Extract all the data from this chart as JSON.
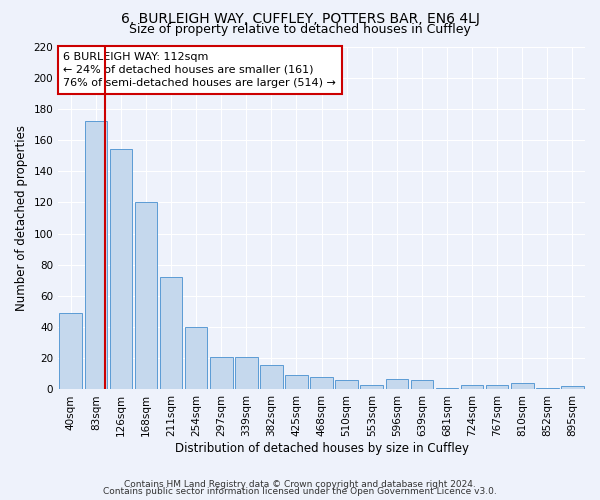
{
  "title": "6, BURLEIGH WAY, CUFFLEY, POTTERS BAR, EN6 4LJ",
  "subtitle": "Size of property relative to detached houses in Cuffley",
  "xlabel": "Distribution of detached houses by size in Cuffley",
  "ylabel": "Number of detached properties",
  "categories": [
    "40sqm",
    "83sqm",
    "126sqm",
    "168sqm",
    "211sqm",
    "254sqm",
    "297sqm",
    "339sqm",
    "382sqm",
    "425sqm",
    "468sqm",
    "510sqm",
    "553sqm",
    "596sqm",
    "639sqm",
    "681sqm",
    "724sqm",
    "767sqm",
    "810sqm",
    "852sqm",
    "895sqm"
  ],
  "values": [
    49,
    172,
    154,
    120,
    72,
    40,
    21,
    21,
    16,
    9,
    8,
    6,
    3,
    7,
    6,
    1,
    3,
    3,
    4,
    1,
    2
  ],
  "bar_color": "#c5d8ed",
  "bar_edge_color": "#5b9bd5",
  "vline_x_pos": 1.35,
  "vline_color": "#cc0000",
  "annotation_text": "6 BURLEIGH WAY: 112sqm\n← 24% of detached houses are smaller (161)\n76% of semi-detached houses are larger (514) →",
  "annotation_box_color": "#ffffff",
  "annotation_box_edge": "#cc0000",
  "ylim": [
    0,
    220
  ],
  "yticks": [
    0,
    20,
    40,
    60,
    80,
    100,
    120,
    140,
    160,
    180,
    200,
    220
  ],
  "footnote1": "Contains HM Land Registry data © Crown copyright and database right 2024.",
  "footnote2": "Contains public sector information licensed under the Open Government Licence v3.0.",
  "bg_color": "#eef2fb",
  "grid_color": "#ffffff",
  "title_fontsize": 10,
  "subtitle_fontsize": 9,
  "label_fontsize": 8.5,
  "tick_fontsize": 7.5,
  "footnote_fontsize": 6.5
}
